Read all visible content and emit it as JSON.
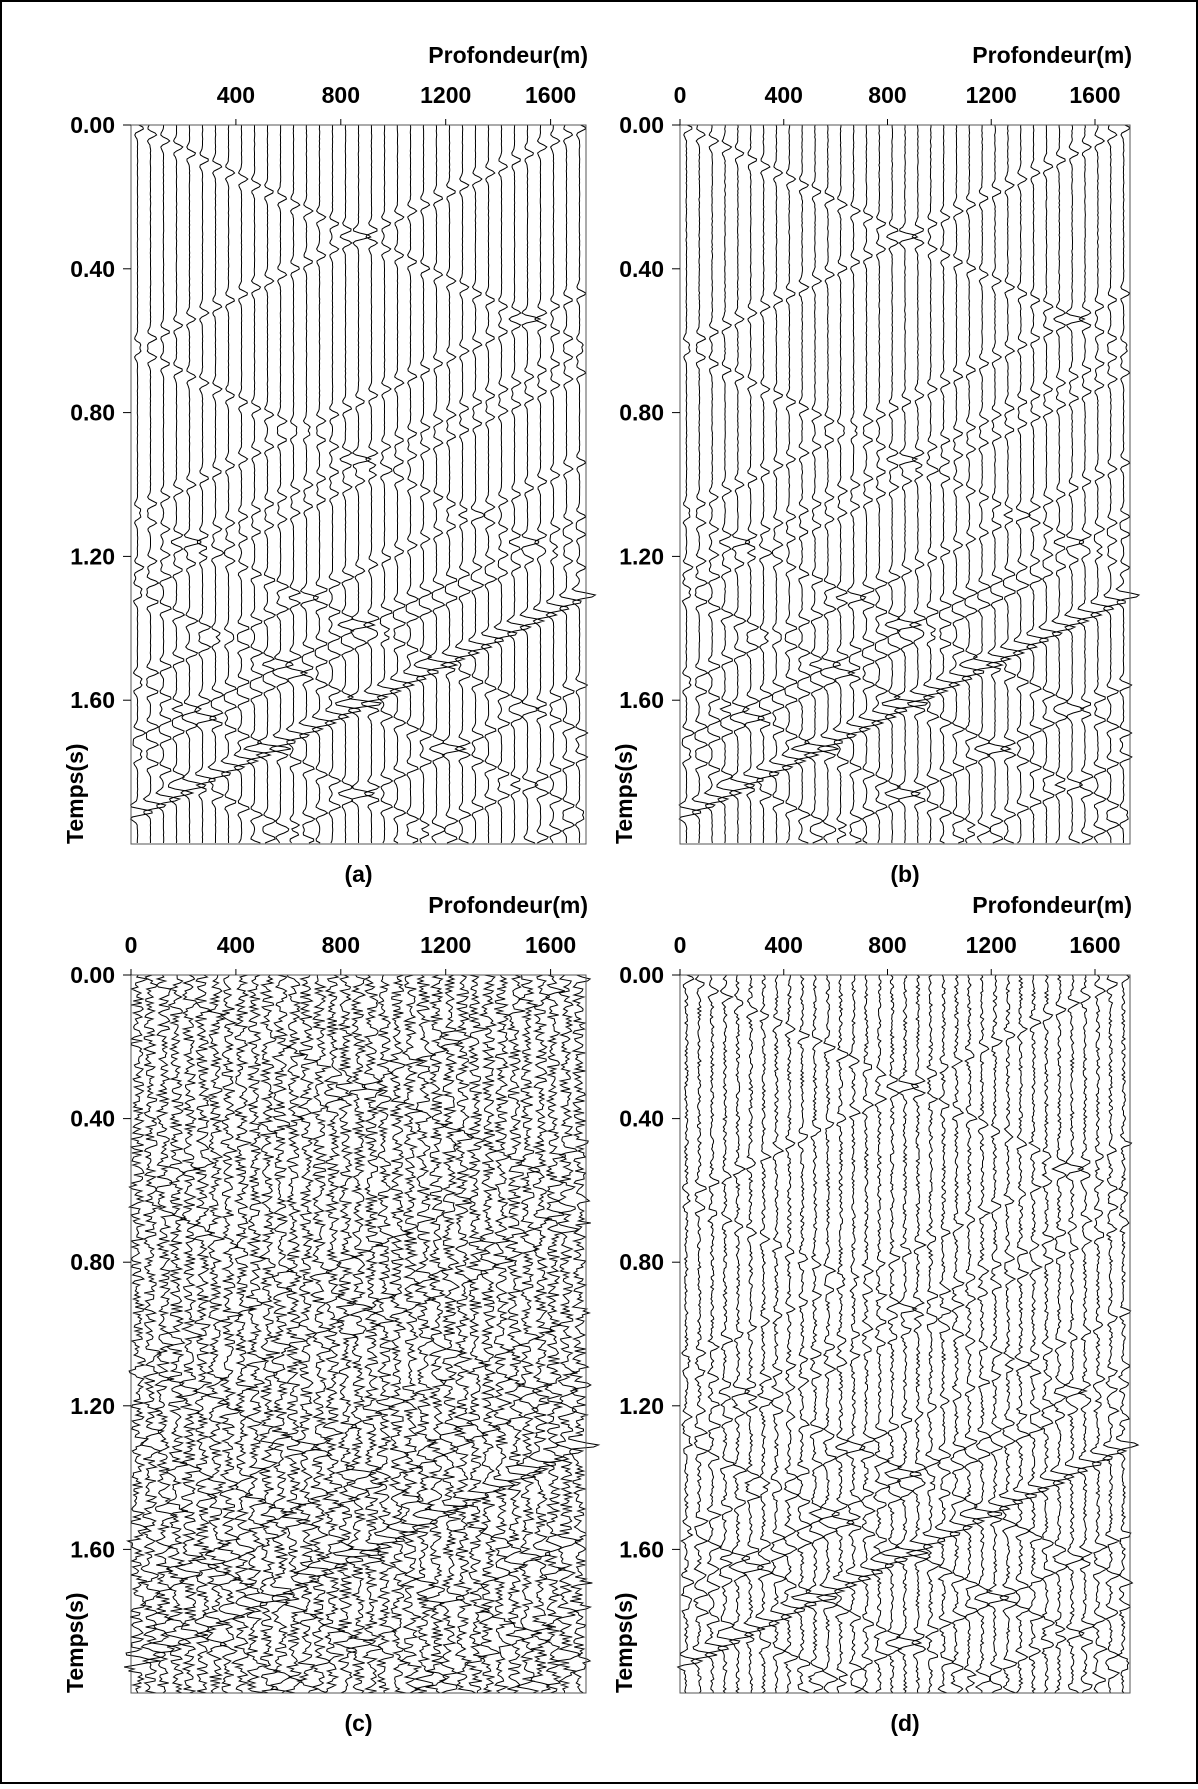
{
  "chart_data": [
    {
      "type": "wiggle",
      "caption": "(a)",
      "x_label": "Profondeur(m)",
      "y_label": "Temps(s)",
      "xlim": [
        0,
        1735
      ],
      "xticks": [
        400,
        800,
        1200,
        1600
      ],
      "ylim": [
        0,
        2.0
      ],
      "yticks": [
        {
          "value": 0,
          "label": "0.00"
        },
        {
          "value": 0.4,
          "label": "0.40"
        },
        {
          "value": 0.8,
          "label": "0.80"
        },
        {
          "value": 1.2,
          "label": "1.20"
        },
        {
          "value": 1.6,
          "label": "1.60"
        }
      ],
      "color": "#000000"
    },
    {
      "type": "wiggle",
      "caption": "(b)",
      "x_label": "Profondeur(m)",
      "y_label": "Temps(s)",
      "xlim": [
        0,
        1735
      ],
      "xticks": [
        0,
        400,
        800,
        1200,
        1600
      ],
      "ylim": [
        0,
        2.0
      ],
      "yticks": [
        {
          "value": 0,
          "label": "0.00"
        },
        {
          "value": 0.4,
          "label": "0.40"
        },
        {
          "value": 0.8,
          "label": "0.80"
        },
        {
          "value": 1.2,
          "label": "1.20"
        },
        {
          "value": 1.6,
          "label": "1.60"
        }
      ],
      "color": "#000000"
    },
    {
      "type": "wiggle",
      "caption": "(c)",
      "x_label": "Profondeur(m)",
      "y_label": "Temps(s)",
      "xlim": [
        0,
        1735
      ],
      "xticks": [
        0,
        400,
        800,
        1200,
        1600
      ],
      "ylim": [
        0,
        2.0
      ],
      "yticks": [
        {
          "value": 0,
          "label": "0.00"
        },
        {
          "value": 0.4,
          "label": "0.40"
        },
        {
          "value": 0.8,
          "label": "0.80"
        },
        {
          "value": 1.2,
          "label": "1.20"
        },
        {
          "value": 1.6,
          "label": "1.60"
        }
      ],
      "color": "#000000"
    },
    {
      "type": "wiggle",
      "caption": "(d)",
      "x_label": "Profondeur(m)",
      "y_label": "Temps(s)",
      "xlim": [
        0,
        1735
      ],
      "xticks": [
        0,
        400,
        800,
        1200,
        1600
      ],
      "ylim": [
        0,
        2.0
      ],
      "yticks": [
        {
          "value": 0,
          "label": "0.00"
        },
        {
          "value": 0.4,
          "label": "0.40"
        },
        {
          "value": 0.8,
          "label": "0.80"
        },
        {
          "value": 1.2,
          "label": "1.20"
        },
        {
          "value": 1.6,
          "label": "1.60"
        }
      ],
      "color": "#000000"
    }
  ]
}
